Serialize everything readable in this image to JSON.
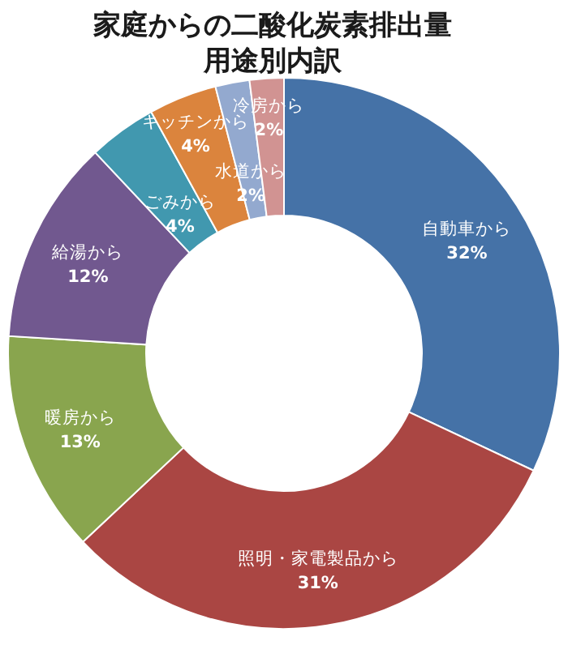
{
  "chart_data": {
    "type": "donut",
    "title": "家庭からの二酸化炭素排出量用途別内訳",
    "categories": [
      "自動車から",
      "照明・家電製品から",
      "暖房から",
      "給湯から",
      "ごみから",
      "キッチンから",
      "水道から",
      "冷房から"
    ],
    "values": [
      32,
      31,
      13,
      12,
      4,
      4,
      2,
      2
    ],
    "value_labels": [
      "32%",
      "31%",
      "13%",
      "12%",
      "4%",
      "4%",
      "2%",
      "2%"
    ],
    "colors": [
      "#4572a7",
      "#aa4643",
      "#89a54e",
      "#71588f",
      "#4198af",
      "#db843d",
      "#93a9cf",
      "#d19392"
    ]
  }
}
